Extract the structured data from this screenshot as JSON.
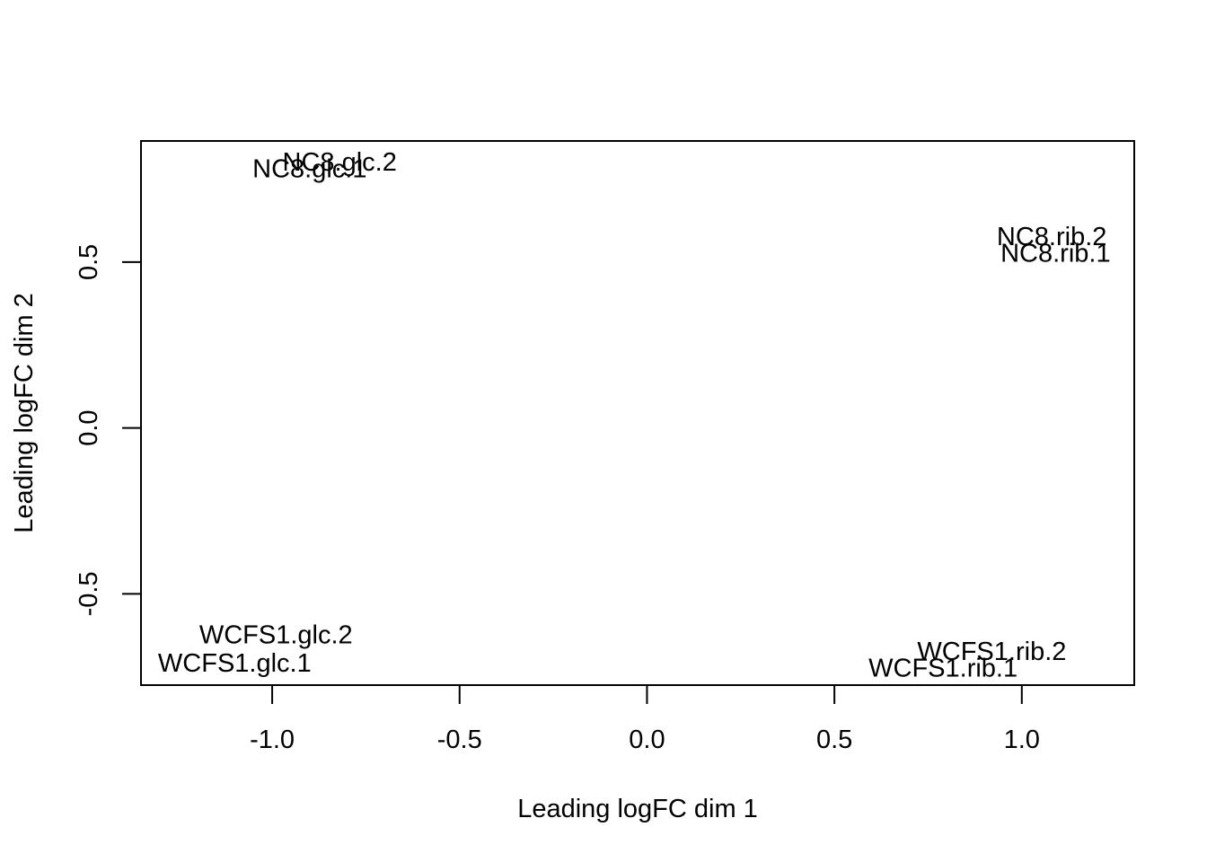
{
  "chart_data": {
    "type": "scatter",
    "title": "",
    "xlabel": "Leading logFC dim 1",
    "ylabel": "Leading logFC dim 2",
    "xlim": [
      -1.35,
      1.3
    ],
    "ylim": [
      -0.775,
      0.865
    ],
    "x_ticks": [
      -1.0,
      -0.5,
      0.0,
      0.5,
      1.0
    ],
    "x_tick_labels": [
      "-1.0",
      "-0.5",
      "0.0",
      "0.5",
      "1.0"
    ],
    "y_ticks": [
      -0.5,
      0.0,
      0.5
    ],
    "y_tick_labels": [
      "-0.5",
      "0.0",
      "0.5"
    ],
    "grid": false,
    "legend": "none",
    "points": [
      {
        "label": "NC8.glc.1",
        "x": -0.9,
        "y": 0.78
      },
      {
        "label": "NC8.glc.2",
        "x": -0.82,
        "y": 0.8
      },
      {
        "label": "NC8.rib.1",
        "x": 1.09,
        "y": 0.525
      },
      {
        "label": "NC8.rib.2",
        "x": 1.08,
        "y": 0.575
      },
      {
        "label": "WCFS1.glc.1",
        "x": -1.1,
        "y": -0.71
      },
      {
        "label": "WCFS1.glc.2",
        "x": -0.99,
        "y": -0.625
      },
      {
        "label": "WCFS1.rib.1",
        "x": 0.79,
        "y": -0.725
      },
      {
        "label": "WCFS1.rib.2",
        "x": 0.92,
        "y": -0.675
      }
    ]
  }
}
